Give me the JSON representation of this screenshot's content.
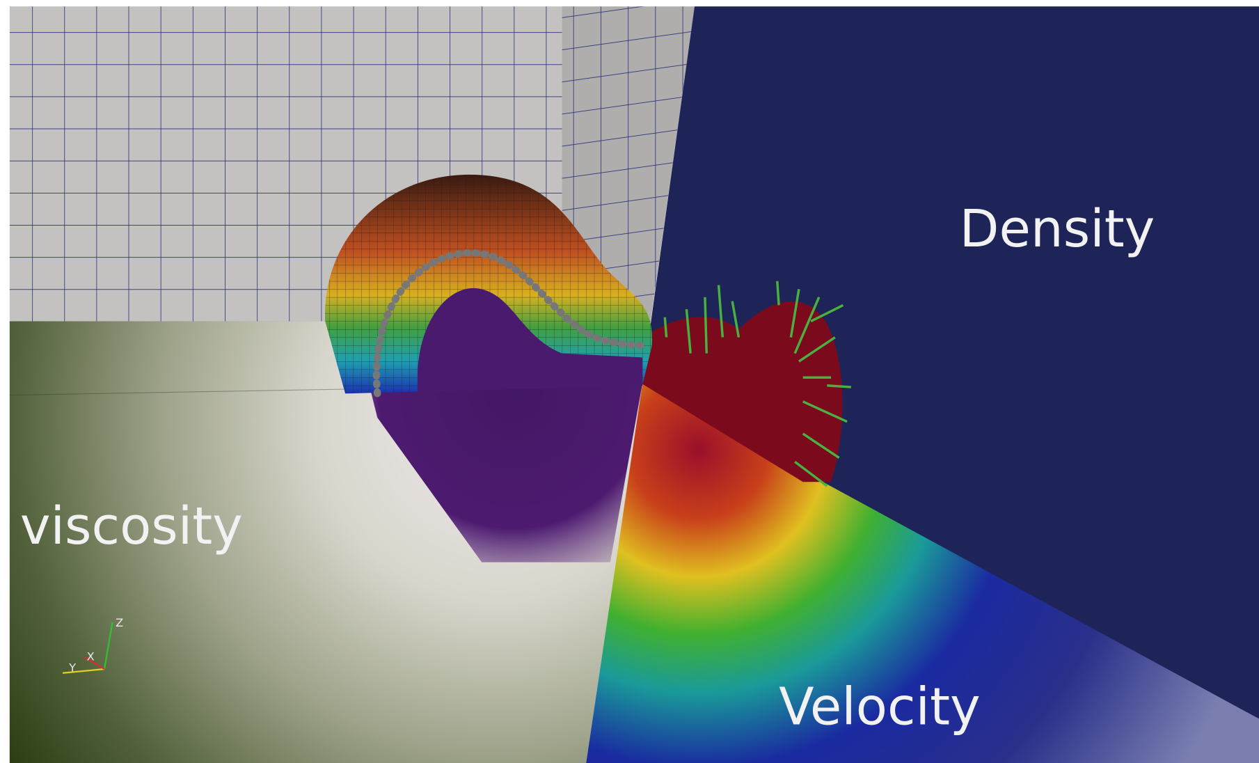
{
  "labels": {
    "density": "Density",
    "viscosity": "viscosity",
    "velocity": "Velocity"
  },
  "axes": {
    "z": "Z",
    "y": "Y",
    "x": "X"
  }
}
